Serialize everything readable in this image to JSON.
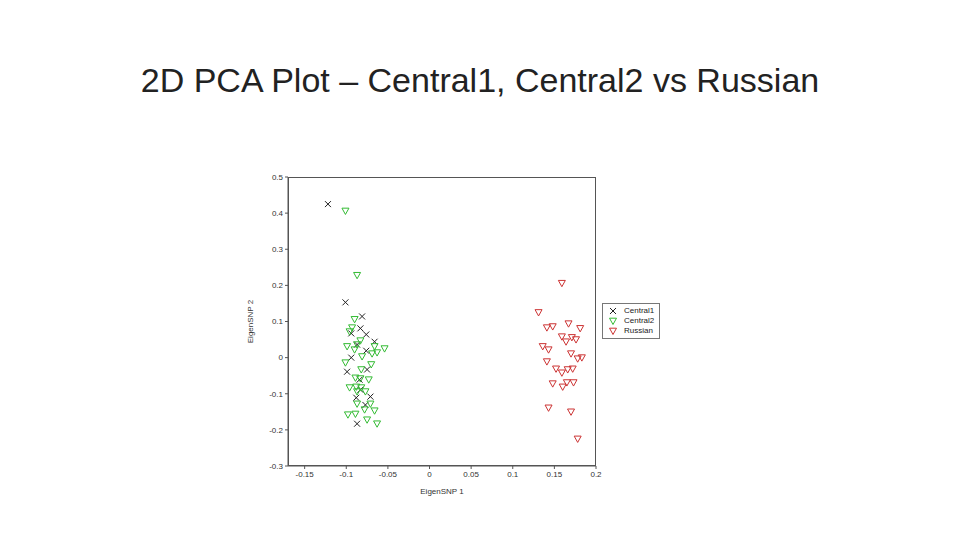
{
  "chart_data": {
    "type": "scatter",
    "title": "2D PCA Plot – Central1, Central2 vs Russian",
    "x_label": "EigenSNP 1",
    "y_label": "EigenSNP 2",
    "xlim": [
      -0.17,
      0.2
    ],
    "xticks": [
      -0.15,
      -0.1,
      -0.05,
      0,
      0.05,
      0.1,
      0.15,
      0.2
    ],
    "ylim": [
      -0.3,
      0.5
    ],
    "yticks": [
      -0.3,
      -0.2,
      -0.1,
      0,
      0.1,
      0.2,
      0.3,
      0.4,
      0.5
    ],
    "grid": false,
    "legend": "right",
    "series": [
      {
        "name": "Central1",
        "color": "#222222",
        "marker": "x",
        "x": [
          -0.122,
          -0.101,
          -0.081,
          -0.083,
          -0.094,
          -0.076,
          -0.066,
          -0.087,
          -0.076,
          -0.094,
          -0.075,
          -0.099,
          -0.084,
          -0.083,
          -0.088,
          -0.077,
          -0.087,
          -0.071
        ],
        "y": [
          0.425,
          0.153,
          0.114,
          0.081,
          0.067,
          0.064,
          0.044,
          0.036,
          0.019,
          0.0,
          -0.033,
          -0.039,
          -0.061,
          -0.089,
          -0.111,
          -0.131,
          -0.183,
          -0.108
        ]
      },
      {
        "name": "Central2",
        "color": "#33bb33",
        "marker": "triangle-down",
        "x": [
          -0.101,
          -0.087,
          -0.09,
          -0.093,
          -0.083,
          -0.087,
          -0.099,
          -0.066,
          -0.054,
          -0.063,
          -0.09,
          -0.081,
          -0.101,
          -0.07,
          -0.082,
          -0.089,
          -0.083,
          -0.073,
          -0.088,
          -0.082,
          -0.096,
          -0.087,
          -0.077,
          -0.071,
          -0.087,
          -0.078,
          -0.066,
          -0.089,
          -0.098,
          -0.075,
          -0.063,
          -0.096,
          -0.069
        ],
        "y": [
          0.406,
          0.228,
          0.106,
          0.083,
          0.047,
          0.036,
          0.031,
          0.031,
          0.025,
          0.014,
          0.022,
          0.003,
          -0.014,
          -0.019,
          -0.033,
          -0.056,
          -0.058,
          -0.061,
          -0.081,
          -0.083,
          -0.083,
          -0.094,
          -0.094,
          -0.128,
          -0.128,
          -0.144,
          -0.147,
          -0.156,
          -0.158,
          -0.172,
          -0.183,
          0.072,
          0.011
        ]
      },
      {
        "name": "Russian",
        "color": "#cc3333",
        "marker": "triangle-down",
        "x": [
          0.159,
          0.131,
          0.141,
          0.148,
          0.167,
          0.181,
          0.159,
          0.171,
          0.164,
          0.176,
          0.136,
          0.143,
          0.17,
          0.178,
          0.183,
          0.141,
          0.152,
          0.159,
          0.166,
          0.172,
          0.165,
          0.16,
          0.173,
          0.143,
          0.17,
          0.178,
          0.148
        ],
        "y": [
          0.206,
          0.125,
          0.083,
          0.086,
          0.094,
          0.081,
          0.058,
          0.056,
          0.044,
          0.05,
          0.031,
          0.022,
          0.011,
          -0.003,
          0.0,
          -0.011,
          -0.031,
          -0.042,
          -0.033,
          -0.031,
          -0.069,
          -0.081,
          -0.069,
          -0.139,
          -0.15,
          -0.225,
          -0.072
        ]
      }
    ]
  }
}
